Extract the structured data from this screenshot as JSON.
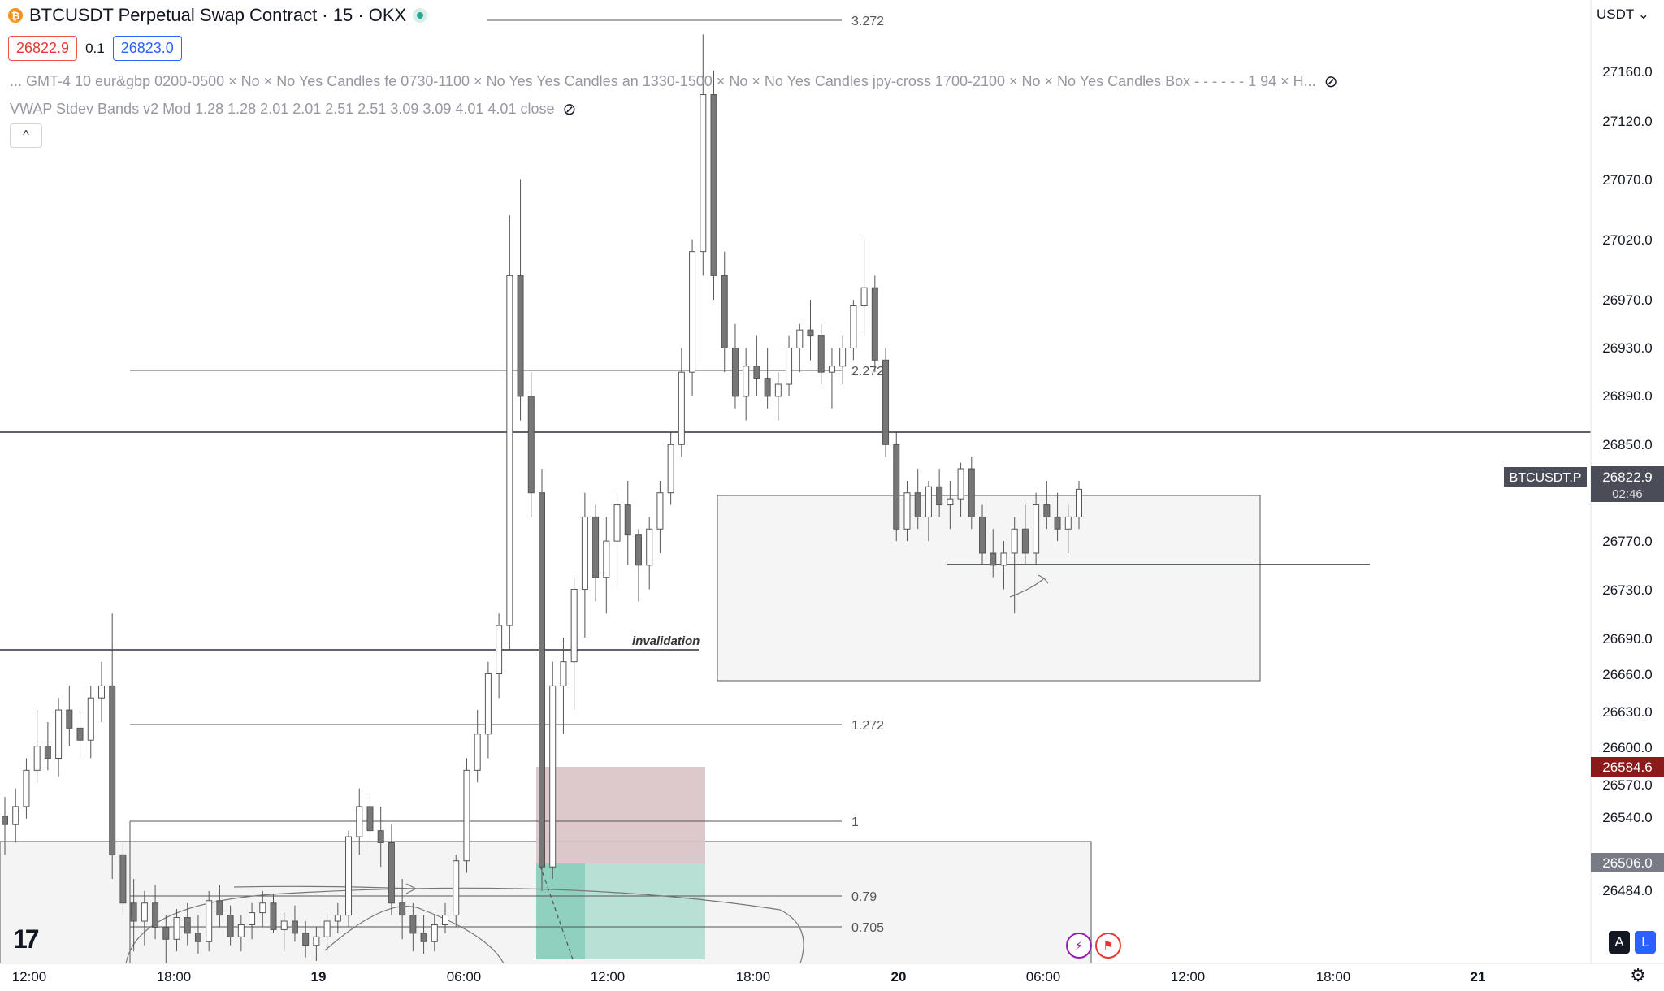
{
  "header": {
    "symbol_title": "BTCUSDT Perpetual Swap Contract · 15 · OKX",
    "bid_price": "26822.9",
    "spread": "0.1",
    "ask_price": "26823.0",
    "indicator_1": "...   GMT-4 10 eur&gbp 0200-0500 × No × No Yes Candles fe 0730-1100 × No Yes Yes Candles an 1330-1500 × No × No Yes Candles jpy-cross 1700-2100 × No × No Yes Candles Box - - - - - - 1 94 × H...",
    "indicator_2": "VWAP Stdev Bands v2 Mod 1.28 1.28 2.01 2.01 2.51 2.51 3.09 3.09 4.01 4.01 close",
    "currency": "USDT",
    "collapse_icon": "chevron-up-icon"
  },
  "price_axis": {
    "ticks": [
      "27160.0",
      "27120.0",
      "27070.0",
      "27020.0",
      "26970.0",
      "26930.0",
      "26890.0",
      "26850.0",
      "26770.0",
      "26730.0",
      "26690.0",
      "26660.0",
      "26630.0",
      "26600.0",
      "26570.0",
      "26540.0",
      "26484.0"
    ],
    "symbol_tag": "BTCUSDT.P",
    "current_price": "26822.9",
    "countdown": "02:46",
    "red_tag": "26584.6",
    "grey_tag": "26506.0",
    "current_color": "#131722",
    "red_color": "#8b1a1a",
    "grey_color": "#787b86"
  },
  "time_axis": {
    "ticks": [
      "12:00",
      "18:00",
      "19",
      "06:00",
      "12:00",
      "18:00",
      "20",
      "06:00",
      "12:00",
      "18:00",
      "21"
    ]
  },
  "annotations": {
    "invalidation": "invalidation",
    "fib_levels": [
      "3.272",
      "2.272",
      "1.272",
      "1",
      "0.79",
      "0.705"
    ]
  },
  "chart_data": {
    "type": "candlestick",
    "price_range": [
      26430,
      27215
    ],
    "candles": [
      [
        26552,
        26568,
        26520,
        26545
      ],
      [
        26545,
        26575,
        26530,
        26560
      ],
      [
        26560,
        26600,
        26550,
        26590
      ],
      [
        26590,
        26640,
        26580,
        26610
      ],
      [
        26610,
        26630,
        26590,
        26600
      ],
      [
        26600,
        26650,
        26585,
        26640
      ],
      [
        26640,
        26660,
        26610,
        26625
      ],
      [
        26625,
        26640,
        26600,
        26615
      ],
      [
        26615,
        26660,
        26600,
        26650
      ],
      [
        26650,
        26680,
        26630,
        26660
      ],
      [
        26660,
        26720,
        26500,
        26520
      ],
      [
        26520,
        26530,
        26470,
        26480
      ],
      [
        26480,
        26500,
        26440,
        26465
      ],
      [
        26465,
        26490,
        26445,
        26480
      ],
      [
        26480,
        26495,
        26450,
        26460
      ],
      [
        26460,
        26470,
        26430,
        26450
      ],
      [
        26450,
        26475,
        26440,
        26468
      ],
      [
        26468,
        26480,
        26445,
        26455
      ],
      [
        26455,
        26470,
        26438,
        26448
      ],
      [
        26448,
        26490,
        26440,
        26482
      ],
      [
        26482,
        26495,
        26460,
        26470
      ],
      [
        26470,
        26478,
        26445,
        26452
      ],
      [
        26452,
        26470,
        26440,
        26462
      ],
      [
        26462,
        26480,
        26450,
        26472
      ],
      [
        26472,
        26490,
        26460,
        26480
      ],
      [
        26480,
        26488,
        26455,
        26458
      ],
      [
        26458,
        26472,
        26440,
        26465
      ],
      [
        26465,
        26478,
        26448,
        26455
      ],
      [
        26455,
        26465,
        26435,
        26445
      ],
      [
        26445,
        26460,
        26432,
        26452
      ],
      [
        26452,
        26470,
        26440,
        26465
      ],
      [
        26465,
        26480,
        26455,
        26470
      ],
      [
        26470,
        26540,
        26460,
        26535
      ],
      [
        26535,
        26575,
        26520,
        26560
      ],
      [
        26560,
        26570,
        26525,
        26540
      ],
      [
        26540,
        26560,
        26510,
        26530
      ],
      [
        26530,
        26545,
        26470,
        26480
      ],
      [
        26480,
        26500,
        26450,
        26470
      ],
      [
        26470,
        26480,
        26440,
        26455
      ],
      [
        26455,
        26470,
        26438,
        26448
      ],
      [
        26448,
        26470,
        26440,
        26462
      ],
      [
        26462,
        26480,
        26455,
        26470
      ],
      [
        26470,
        26520,
        26460,
        26515
      ],
      [
        26515,
        26600,
        26505,
        26590
      ],
      [
        26590,
        26640,
        26580,
        26620
      ],
      [
        26620,
        26680,
        26600,
        26670
      ],
      [
        26670,
        26720,
        26650,
        26710
      ],
      [
        26710,
        27050,
        26690,
        27000
      ],
      [
        27000,
        27080,
        26880,
        26900
      ],
      [
        26900,
        26920,
        26800,
        26820
      ],
      [
        26820,
        26840,
        26490,
        26510
      ],
      [
        26510,
        26680,
        26500,
        26660
      ],
      [
        26660,
        26700,
        26620,
        26680
      ],
      [
        26680,
        26750,
        26640,
        26740
      ],
      [
        26740,
        26820,
        26700,
        26800
      ],
      [
        26800,
        26810,
        26730,
        26750
      ],
      [
        26750,
        26800,
        26720,
        26780
      ],
      [
        26780,
        26820,
        26740,
        26810
      ],
      [
        26810,
        26830,
        26760,
        26785
      ],
      [
        26785,
        26790,
        26730,
        26760
      ],
      [
        26760,
        26800,
        26740,
        26790
      ],
      [
        26790,
        26830,
        26770,
        26820
      ],
      [
        26820,
        26870,
        26810,
        26860
      ],
      [
        26860,
        26940,
        26850,
        26920
      ],
      [
        26920,
        27030,
        26900,
        27020
      ],
      [
        27020,
        27200,
        27000,
        27150
      ],
      [
        27150,
        27170,
        26980,
        27000
      ],
      [
        27000,
        27020,
        26920,
        26940
      ],
      [
        26940,
        26960,
        26890,
        26900
      ],
      [
        26900,
        26940,
        26880,
        26925
      ],
      [
        26925,
        26950,
        26900,
        26915
      ],
      [
        26915,
        26940,
        26890,
        26900
      ],
      [
        26900,
        26920,
        26880,
        26910
      ],
      [
        26910,
        26950,
        26900,
        26940
      ],
      [
        26940,
        26960,
        26920,
        26955
      ],
      [
        26955,
        26980,
        26930,
        26950
      ],
      [
        26950,
        26960,
        26910,
        26920
      ],
      [
        26920,
        26940,
        26890,
        26925
      ],
      [
        26925,
        26950,
        26910,
        26940
      ],
      [
        26940,
        26980,
        26930,
        26975
      ],
      [
        26975,
        27030,
        26950,
        26990
      ],
      [
        26990,
        27000,
        26920,
        26930
      ],
      [
        26930,
        26940,
        26850,
        26860
      ],
      [
        26860,
        26870,
        26780,
        26790
      ],
      [
        26790,
        26830,
        26780,
        26820
      ],
      [
        26820,
        26840,
        26790,
        26800
      ],
      [
        26800,
        26830,
        26780,
        26825
      ],
      [
        26825,
        26840,
        26800,
        26810
      ],
      [
        26810,
        26830,
        26790,
        26815
      ],
      [
        26815,
        26845,
        26800,
        26840
      ],
      [
        26840,
        26850,
        26790,
        26800
      ],
      [
        26800,
        26810,
        26760,
        26770
      ],
      [
        26770,
        26790,
        26750,
        26760
      ],
      [
        26760,
        26780,
        26740,
        26770
      ],
      [
        26770,
        26800,
        26720,
        26790
      ],
      [
        26790,
        26810,
        26760,
        26770
      ],
      [
        26770,
        26820,
        26760,
        26810
      ],
      [
        26810,
        26830,
        26790,
        26800
      ],
      [
        26800,
        26820,
        26780,
        26790
      ],
      [
        26790,
        26810,
        26770,
        26800
      ],
      [
        26800,
        26830,
        26790,
        26822.9
      ]
    ]
  }
}
